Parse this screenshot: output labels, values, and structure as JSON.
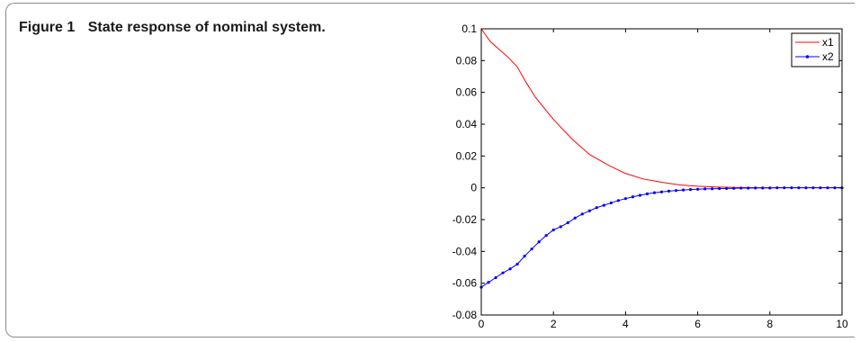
{
  "caption": {
    "label": "Figure 1",
    "title": "State response of nominal system."
  },
  "chart_data": {
    "type": "line",
    "title": "",
    "xlabel": "",
    "ylabel": "",
    "xlim": [
      0,
      10
    ],
    "ylim": [
      -0.08,
      0.1
    ],
    "xticks": [
      0,
      2,
      4,
      6,
      8,
      10
    ],
    "xtick_labels": [
      "0",
      "2",
      "4",
      "6",
      "8",
      "10"
    ],
    "yticks": [
      0.1,
      0.08,
      0.06,
      0.04,
      0.02,
      0,
      -0.02,
      -0.04,
      -0.06,
      -0.08
    ],
    "ytick_labels": [
      "0.1",
      "0.08",
      "0.06",
      "0.04",
      "0.02",
      "0",
      "-0.02",
      "-0.04",
      "-0.06",
      "-0.08"
    ],
    "grid": false,
    "legend_position": "top-right",
    "series": [
      {
        "name": "x1",
        "color": "#ff0000",
        "marker": "none",
        "x": [
          0,
          0.25,
          0.5,
          0.75,
          1.0,
          1.25,
          1.5,
          2.0,
          2.5,
          3.0,
          3.5,
          4.0,
          4.5,
          5.0,
          5.5,
          6.0,
          6.5,
          7.0,
          7.5,
          8.0,
          8.5,
          9.0,
          9.5,
          10.0
        ],
        "values": [
          0.1,
          0.092,
          0.087,
          0.082,
          0.076,
          0.066,
          0.057,
          0.043,
          0.031,
          0.021,
          0.0145,
          0.009,
          0.0055,
          0.0035,
          0.0018,
          0.001,
          0.0005,
          0.0002,
          0.0001,
          0.0,
          0.0,
          0.0,
          0.0,
          0.0
        ]
      },
      {
        "name": "x2",
        "color": "#0000ff",
        "marker": "dot",
        "x": [
          0,
          0.2,
          0.4,
          0.6,
          0.8,
          1.0,
          1.2,
          1.4,
          1.6,
          1.8,
          2.0,
          2.2,
          2.4,
          2.6,
          2.8,
          3.0,
          3.2,
          3.4,
          3.6,
          3.8,
          4.0,
          4.2,
          4.4,
          4.6,
          4.8,
          5.0,
          5.2,
          5.4,
          5.6,
          5.8,
          6.0,
          6.2,
          6.4,
          6.6,
          6.8,
          7.0,
          7.2,
          7.4,
          7.6,
          7.8,
          8.0,
          8.2,
          8.4,
          8.6,
          8.8,
          9.0,
          9.2,
          9.4,
          9.6,
          9.8,
          10.0
        ],
        "values": [
          -0.0625,
          -0.0595,
          -0.0565,
          -0.0535,
          -0.051,
          -0.048,
          -0.043,
          -0.0385,
          -0.034,
          -0.03,
          -0.0265,
          -0.0245,
          -0.022,
          -0.019,
          -0.0165,
          -0.0145,
          -0.0125,
          -0.011,
          -0.0095,
          -0.008,
          -0.0068,
          -0.0057,
          -0.0047,
          -0.0038,
          -0.0031,
          -0.0026,
          -0.0021,
          -0.0017,
          -0.0014,
          -0.0011,
          -0.0009,
          -0.0007,
          -0.0006,
          -0.0005,
          -0.0004,
          -0.0003,
          -0.0002,
          -0.0002,
          -0.0001,
          -0.0001,
          -0.0001,
          0.0,
          0.0,
          0.0,
          0.0,
          0.0,
          0.0,
          0.0,
          0.0,
          0.0,
          0.0
        ]
      }
    ]
  }
}
